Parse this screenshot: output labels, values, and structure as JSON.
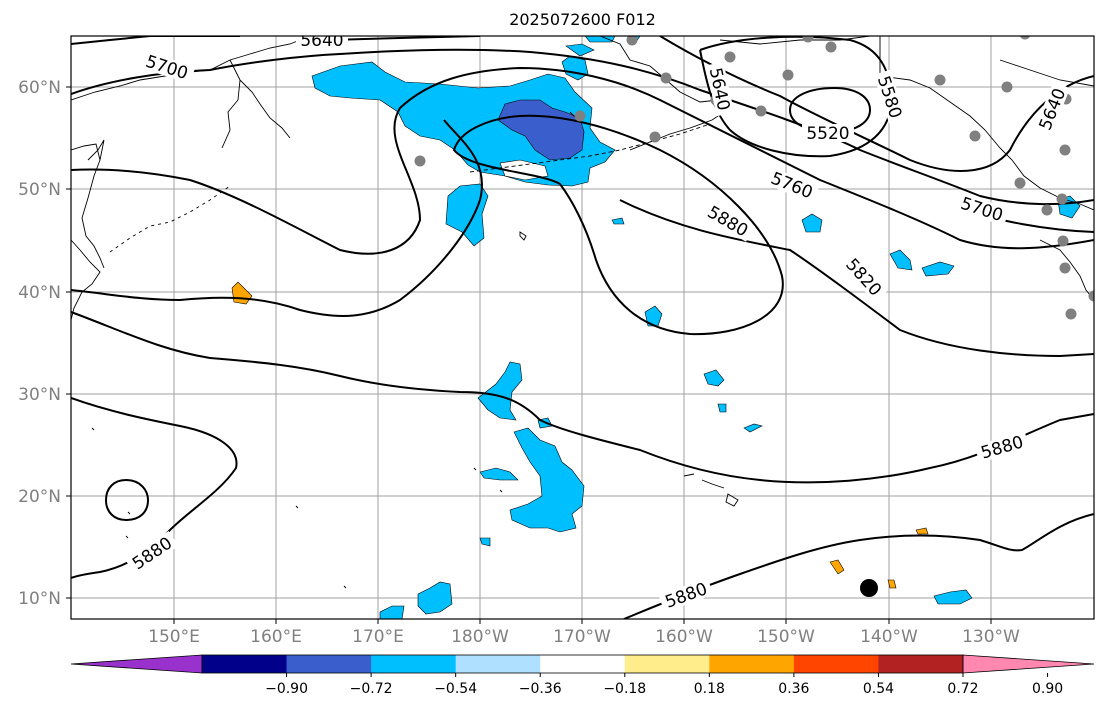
{
  "title": "2025072600 F012",
  "map": {
    "lon_ticks": [
      {
        "label": "150°E"
      },
      {
        "label": "160°E"
      },
      {
        "label": "170°E"
      },
      {
        "label": "180°W"
      },
      {
        "label": "170°W"
      },
      {
        "label": "160°W"
      },
      {
        "label": "150°W"
      },
      {
        "label": "140°W"
      },
      {
        "label": "130°W"
      }
    ],
    "lat_ticks": [
      {
        "label": "60°N"
      },
      {
        "label": "50°N"
      },
      {
        "label": "40°N"
      },
      {
        "label": "30°N"
      },
      {
        "label": "20°N"
      },
      {
        "label": "10°N"
      }
    ],
    "contour_labels": [
      {
        "text": "5640"
      },
      {
        "text": "5700"
      },
      {
        "text": "5640"
      },
      {
        "text": "5580"
      },
      {
        "text": "5520"
      },
      {
        "text": "5640"
      },
      {
        "text": "5760"
      },
      {
        "text": "5700"
      },
      {
        "text": "5880"
      },
      {
        "text": "5820"
      },
      {
        "text": "5880"
      },
      {
        "text": "5880"
      },
      {
        "text": "5880"
      }
    ],
    "colors": {
      "contour": "#000000",
      "grid": "#a0a0a0",
      "tick_label": "#808080",
      "station_dot": "#808080",
      "coast": "#000000"
    }
  },
  "colorbar": {
    "labels": [
      "−0.90",
      "−0.72",
      "−0.54",
      "−0.36",
      "−0.18",
      "0.18",
      "0.36",
      "0.54",
      "0.72",
      "0.90"
    ],
    "colors": [
      "#9932cc",
      "#00008b",
      "#3a5fcd",
      "#00bfff",
      "#b0e0ff",
      "#ffffff",
      "#ffec8b",
      "#ffa500",
      "#ff4500",
      "#b22222",
      "#ff87b0"
    ]
  }
}
